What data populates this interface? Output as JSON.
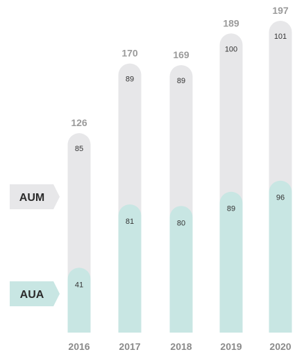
{
  "chart_data": {
    "type": "bar",
    "stacked": true,
    "categories": [
      "2016",
      "2017",
      "2018",
      "2019",
      "2020"
    ],
    "series": [
      {
        "name": "AUA",
        "values": [
          41,
          81,
          80,
          89,
          96
        ]
      },
      {
        "name": "AUM",
        "values": [
          85,
          89,
          89,
          100,
          101
        ]
      }
    ],
    "totals": [
      126,
      170,
      169,
      189,
      197
    ],
    "title": "",
    "xlabel": "",
    "ylabel": "",
    "ylim": [
      0,
      197
    ],
    "grid": false,
    "legend": "left"
  },
  "legend": {
    "aum_label": "AUM",
    "aua_label": "AUA"
  },
  "colors": {
    "AUA": "#c8e6e3",
    "AUM": "#e7e7e9",
    "legend_aum_bg": "#e7e7e9",
    "legend_aua_bg": "#c8e6e3"
  }
}
